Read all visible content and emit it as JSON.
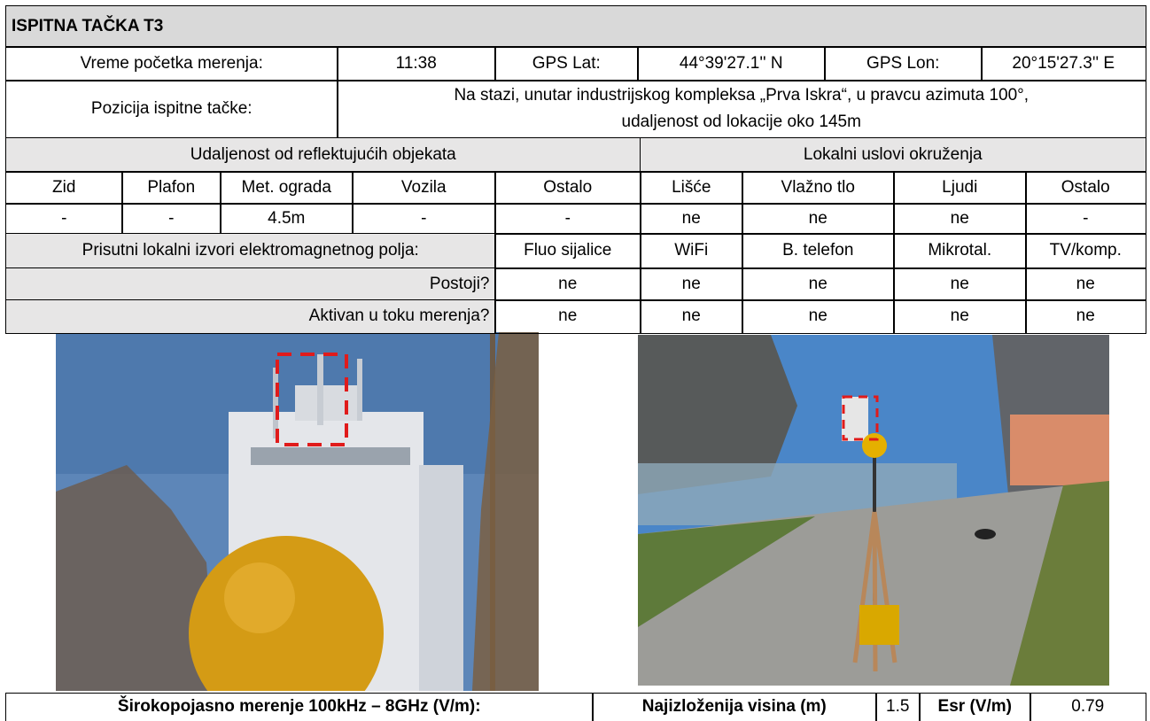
{
  "title": "ISPITNA TAČKA T3",
  "measurement": {
    "start_time_label": "Vreme početka merenja:",
    "start_time": "11:38",
    "gps_lat_label": "GPS Lat:",
    "gps_lat": "44°39'27.1'' N",
    "gps_lon_label": "GPS Lon:",
    "gps_lon": "20°15'27.3'' E",
    "position_label": "Pozicija ispitne tačke:",
    "position_lines": [
      "Na stazi, unutar industrijskog kompleksa „Prva Iskra“, u pravcu azimuta 100°,",
      "udaljenost od lokacije oko 145m"
    ]
  },
  "reflective_objects": {
    "heading": "Udaljenost od reflektujućih objekata",
    "columns": [
      "Zid",
      "Plafon",
      "Met. ograda",
      "Vozila",
      "Ostalo"
    ],
    "values": [
      "-",
      "-",
      "4.5m",
      "-",
      "-"
    ]
  },
  "local_conditions": {
    "heading": "Lokalni uslovi okruženja",
    "columns": [
      "Lišće",
      "Vlažno tlo",
      "Ljudi",
      "Ostalo"
    ],
    "values": [
      "ne",
      "ne",
      "ne",
      "-"
    ]
  },
  "em_sources": {
    "heading": "Prisutni lokalni izvori elektromagnetnog polja:",
    "columns": [
      "Fluo sijalice",
      "WiFi",
      "B. telefon",
      "Mikrotal.",
      "TV/komp."
    ],
    "rows": [
      {
        "label": "Postoji?",
        "values": [
          "ne",
          "ne",
          "ne",
          "ne",
          "ne"
        ]
      },
      {
        "label": "Aktivan u toku merenja?",
        "values": [
          "ne",
          "ne",
          "ne",
          "ne",
          "ne"
        ]
      }
    ]
  },
  "result": {
    "broadband_label": "Širokopojasno merenje 100kHz – 8GHz (V/m):",
    "height_label": "Najizloženija visina (m)",
    "height": 1.5,
    "esr_label": "Esr (V/m)",
    "esr": 0.79
  }
}
